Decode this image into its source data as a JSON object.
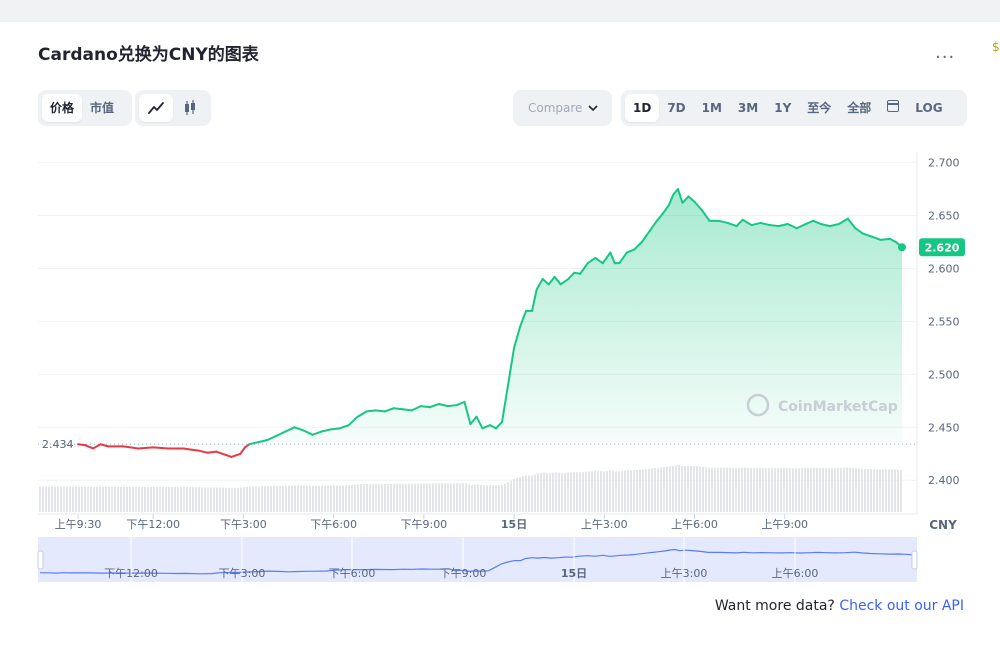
{
  "title": "Cardano兑换为CNY的图表",
  "more_label": "...",
  "sidebar_edge": "$",
  "view_tabs": [
    {
      "label": "价格",
      "active": true
    },
    {
      "label": "市值",
      "active": false
    }
  ],
  "chart_type_icons": [
    "line-chart-icon",
    "candlestick-icon"
  ],
  "compare_label": "Compare",
  "range_tabs": [
    {
      "label": "1D",
      "active": true
    },
    {
      "label": "7D",
      "active": false
    },
    {
      "label": "1M",
      "active": false
    },
    {
      "label": "3M",
      "active": false
    },
    {
      "label": "1Y",
      "active": false
    },
    {
      "label": "至今",
      "active": false
    },
    {
      "label": "全部",
      "active": false
    },
    {
      "label": "LOG",
      "active": false
    }
  ],
  "watermark": "CoinMarketCap",
  "api_text": "Want more data?",
  "api_link": "Check out our API",
  "colors": {
    "up": "#16c784",
    "down": "#ea3943",
    "accent": "#3861fb"
  },
  "chart_data": {
    "type": "line",
    "currency_label": "CNY",
    "ylim": [
      2.37,
      2.71
    ],
    "y_ticks": [
      2.4,
      2.45,
      2.5,
      2.55,
      2.6,
      2.65,
      2.7
    ],
    "y_tick_labels": [
      "2.400",
      "2.450",
      "2.500",
      "2.550",
      "2.600",
      "2.650",
      "2.700"
    ],
    "open_label": "2.434",
    "open_value": 2.434,
    "current_label": "2.620",
    "current_value": 2.62,
    "x_ticks": [
      {
        "t": 0,
        "label": "上午9:30"
      },
      {
        "t": 2.5,
        "label": "下午12:00"
      },
      {
        "t": 5.5,
        "label": "下午3:00"
      },
      {
        "t": 8.5,
        "label": "下午6:00"
      },
      {
        "t": 11.5,
        "label": "下午9:00"
      },
      {
        "t": 14.5,
        "label": "15日"
      },
      {
        "t": 17.5,
        "label": "上午3:00"
      },
      {
        "t": 20.5,
        "label": "上午6:00"
      },
      {
        "t": 23.5,
        "label": "上午9:00"
      }
    ],
    "grid": true,
    "series": [
      {
        "values": [
          [
            0,
            2.434
          ],
          [
            0.25,
            2.433
          ],
          [
            0.5,
            2.43
          ],
          [
            0.75,
            2.434
          ],
          [
            1,
            2.432
          ],
          [
            1.5,
            2.432
          ],
          [
            2,
            2.43
          ],
          [
            2.5,
            2.431
          ],
          [
            3,
            2.43
          ],
          [
            3.5,
            2.43
          ],
          [
            4,
            2.428
          ],
          [
            4.3,
            2.426
          ],
          [
            4.6,
            2.427
          ],
          [
            4.9,
            2.424
          ],
          [
            5.1,
            2.422
          ],
          [
            5.4,
            2.425
          ],
          [
            5.55,
            2.431
          ],
          [
            5.7,
            2.434
          ],
          [
            6,
            2.436
          ],
          [
            6.3,
            2.438
          ],
          [
            6.6,
            2.442
          ],
          [
            6.9,
            2.446
          ],
          [
            7.2,
            2.45
          ],
          [
            7.5,
            2.447
          ],
          [
            7.8,
            2.443
          ],
          [
            8.1,
            2.446
          ],
          [
            8.4,
            2.448
          ],
          [
            8.7,
            2.449
          ],
          [
            9,
            2.452
          ],
          [
            9.3,
            2.46
          ],
          [
            9.6,
            2.465
          ],
          [
            9.9,
            2.466
          ],
          [
            10.2,
            2.465
          ],
          [
            10.5,
            2.468
          ],
          [
            10.8,
            2.467
          ],
          [
            11.1,
            2.466
          ],
          [
            11.4,
            2.47
          ],
          [
            11.7,
            2.469
          ],
          [
            12,
            2.472
          ],
          [
            12.3,
            2.47
          ],
          [
            12.6,
            2.471
          ],
          [
            12.85,
            2.474
          ],
          [
            13.05,
            2.453
          ],
          [
            13.25,
            2.46
          ],
          [
            13.45,
            2.449
          ],
          [
            13.7,
            2.452
          ],
          [
            13.9,
            2.449
          ],
          [
            14.1,
            2.455
          ],
          [
            14.3,
            2.49
          ],
          [
            14.5,
            2.525
          ],
          [
            14.7,
            2.545
          ],
          [
            14.9,
            2.56
          ],
          [
            15.1,
            2.56
          ],
          [
            15.25,
            2.58
          ],
          [
            15.45,
            2.59
          ],
          [
            15.65,
            2.585
          ],
          [
            15.85,
            2.592
          ],
          [
            16.05,
            2.585
          ],
          [
            16.3,
            2.59
          ],
          [
            16.5,
            2.596
          ],
          [
            16.7,
            2.595
          ],
          [
            16.95,
            2.605
          ],
          [
            17.2,
            2.61
          ],
          [
            17.45,
            2.605
          ],
          [
            17.7,
            2.615
          ],
          [
            17.85,
            2.605
          ],
          [
            18,
            2.605
          ],
          [
            18.25,
            2.615
          ],
          [
            18.5,
            2.618
          ],
          [
            18.75,
            2.625
          ],
          [
            19,
            2.635
          ],
          [
            19.25,
            2.645
          ],
          [
            19.45,
            2.652
          ],
          [
            19.65,
            2.66
          ],
          [
            19.8,
            2.67
          ],
          [
            19.95,
            2.675
          ],
          [
            20.1,
            2.662
          ],
          [
            20.3,
            2.668
          ],
          [
            20.5,
            2.663
          ],
          [
            20.75,
            2.655
          ],
          [
            21,
            2.645
          ],
          [
            21.3,
            2.645
          ],
          [
            21.6,
            2.643
          ],
          [
            21.9,
            2.64
          ],
          [
            22.1,
            2.646
          ],
          [
            22.4,
            2.641
          ],
          [
            22.7,
            2.643
          ],
          [
            23,
            2.641
          ],
          [
            23.3,
            2.64
          ],
          [
            23.6,
            2.642
          ],
          [
            23.9,
            2.638
          ],
          [
            24.2,
            2.642
          ],
          [
            24.45,
            2.645
          ],
          [
            24.7,
            2.642
          ],
          [
            25,
            2.64
          ],
          [
            25.3,
            2.642
          ],
          [
            25.6,
            2.647
          ],
          [
            25.85,
            2.638
          ],
          [
            26.1,
            2.633
          ],
          [
            26.4,
            2.63
          ],
          [
            26.7,
            2.627
          ],
          [
            27,
            2.628
          ],
          [
            27.2,
            2.625
          ],
          [
            27.4,
            2.62
          ]
        ]
      }
    ],
    "navigator_ticks": [
      "下午12:00",
      "下午3:00",
      "下午6:00",
      "下午9:00",
      "15日",
      "上午3:00",
      "上午6:00"
    ]
  }
}
